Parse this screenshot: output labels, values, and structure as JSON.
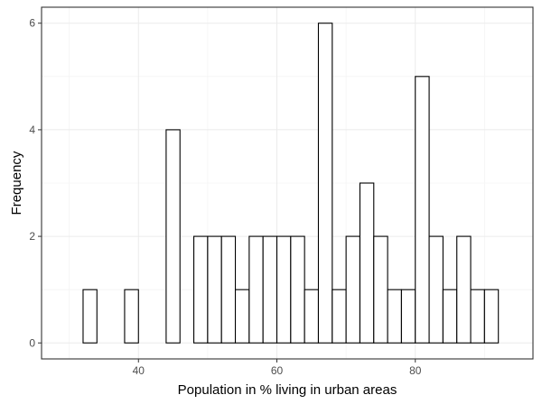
{
  "chart_data": {
    "type": "histogram",
    "xlabel": "Population in % living in urban areas",
    "ylabel": "Frequency",
    "xlim": [
      26,
      97
    ],
    "ylim": [
      -0.3,
      6.3
    ],
    "x_ticks": [
      40,
      60,
      80
    ],
    "y_ticks": [
      0,
      2,
      4,
      6
    ],
    "bin_width": 2,
    "bins": [
      {
        "left": 30,
        "count": 0
      },
      {
        "left": 32,
        "count": 1
      },
      {
        "left": 34,
        "count": 0
      },
      {
        "left": 36,
        "count": 0
      },
      {
        "left": 38,
        "count": 1
      },
      {
        "left": 40,
        "count": 0
      },
      {
        "left": 42,
        "count": 0
      },
      {
        "left": 44,
        "count": 4
      },
      {
        "left": 46,
        "count": 0
      },
      {
        "left": 48,
        "count": 2
      },
      {
        "left": 50,
        "count": 2
      },
      {
        "left": 52,
        "count": 2
      },
      {
        "left": 54,
        "count": 1
      },
      {
        "left": 56,
        "count": 2
      },
      {
        "left": 58,
        "count": 2
      },
      {
        "left": 60,
        "count": 2
      },
      {
        "left": 62,
        "count": 2
      },
      {
        "left": 64,
        "count": 1
      },
      {
        "left": 66,
        "count": 6
      },
      {
        "left": 68,
        "count": 1
      },
      {
        "left": 70,
        "count": 2
      },
      {
        "left": 72,
        "count": 3
      },
      {
        "left": 74,
        "count": 2
      },
      {
        "left": 76,
        "count": 1
      },
      {
        "left": 78,
        "count": 1
      },
      {
        "left": 80,
        "count": 5
      },
      {
        "left": 82,
        "count": 2
      },
      {
        "left": 84,
        "count": 1
      },
      {
        "left": 86,
        "count": 2
      },
      {
        "left": 88,
        "count": 1
      },
      {
        "left": 90,
        "count": 1
      },
      {
        "left": 92,
        "count": 0
      }
    ],
    "grid": true,
    "theme": "bw"
  }
}
